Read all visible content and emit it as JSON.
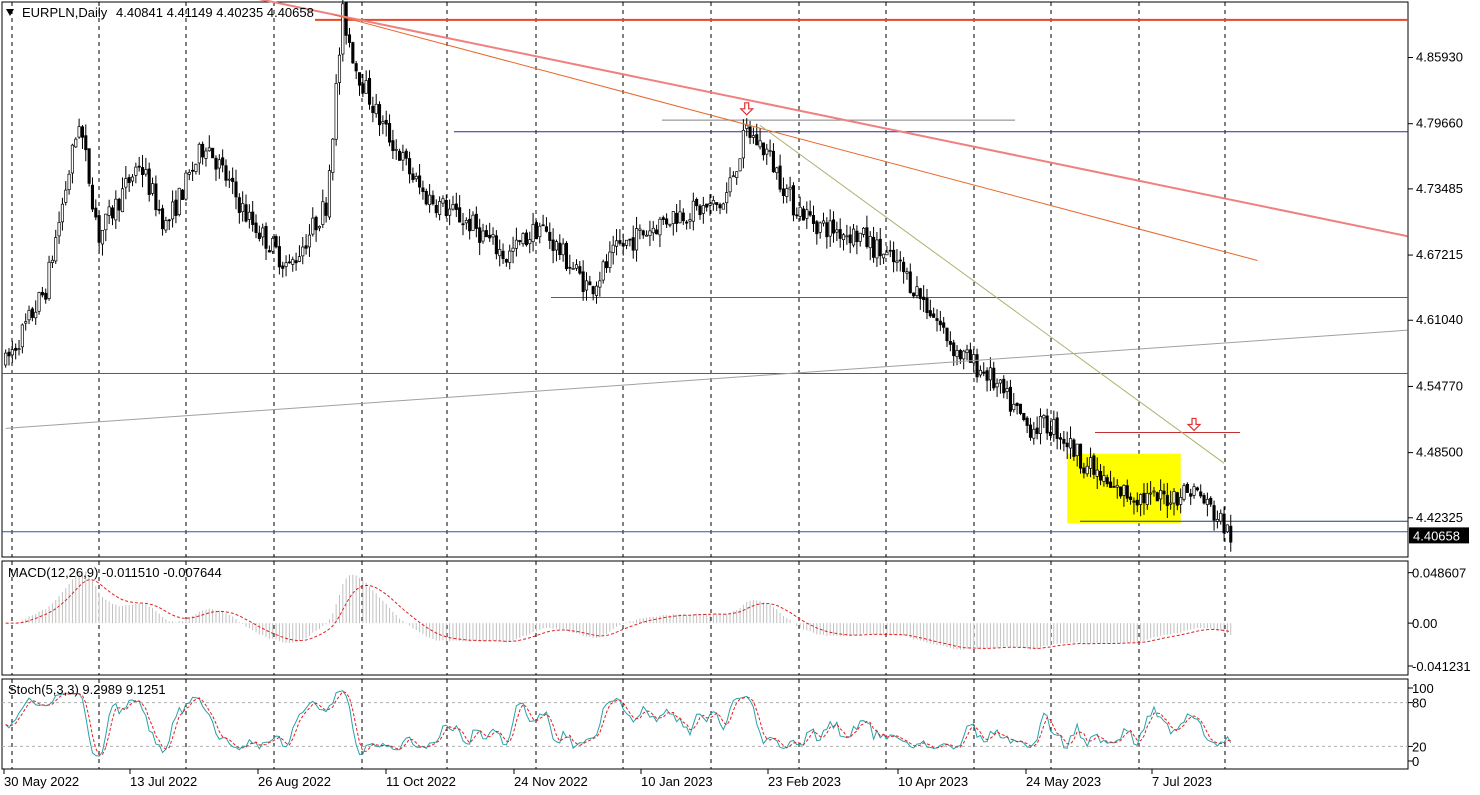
{
  "header": {
    "menu_icon": "triangle-down-icon",
    "symbol": "EURPLN,Daily",
    "ohlc": "4.40841 4.41149 4.40235 4.40658"
  },
  "chart_data": {
    "type": "candlestick",
    "symbol": "EURPLN",
    "timeframe": "Daily",
    "last_price": "4.40658",
    "price_range": [
      4.388,
      4.91
    ],
    "price_ticks": [
      "4.85930",
      "4.79660",
      "4.73485",
      "4.67215",
      "4.61040",
      "4.54770",
      "4.48500",
      "4.42325"
    ],
    "date_labels": [
      "30 May 2022",
      "13 Jul 2022",
      "26 Aug 2022",
      "11 Oct 2022",
      "24 Nov 2022",
      "10 Jan 2023",
      "23 Feb 2023",
      "10 Apr 2023",
      "24 May 2023",
      "7 Jul 2023"
    ],
    "grid": "vertical dashed",
    "price_path": [
      [
        0,
        4.57
      ],
      [
        12,
        4.64
      ],
      [
        22,
        4.8
      ],
      [
        28,
        4.69
      ],
      [
        40,
        4.76
      ],
      [
        48,
        4.7
      ],
      [
        60,
        4.78
      ],
      [
        72,
        4.71
      ],
      [
        85,
        4.66
      ],
      [
        96,
        4.72
      ],
      [
        101,
        4.9
      ],
      [
        105,
        4.85
      ],
      [
        112,
        4.8
      ],
      [
        125,
        4.73
      ],
      [
        140,
        4.7
      ],
      [
        150,
        4.67
      ],
      [
        160,
        4.7
      ],
      [
        170,
        4.66
      ],
      [
        175,
        4.64
      ],
      [
        184,
        4.68
      ],
      [
        200,
        4.71
      ],
      [
        215,
        4.72
      ],
      [
        222,
        4.79
      ],
      [
        228,
        4.77
      ],
      [
        236,
        4.72
      ],
      [
        244,
        4.7
      ],
      [
        256,
        4.69
      ],
      [
        268,
        4.66
      ],
      [
        277,
        4.62
      ],
      [
        285,
        4.58
      ],
      [
        294,
        4.56
      ],
      [
        306,
        4.51
      ],
      [
        314,
        4.51
      ],
      [
        322,
        4.48
      ],
      [
        331,
        4.45
      ],
      [
        344,
        4.44
      ],
      [
        356,
        4.45
      ],
      [
        364,
        4.42
      ],
      [
        367,
        4.406
      ]
    ],
    "yellow_zone": {
      "x": [
        318,
        352
      ],
      "y": [
        4.418,
        4.484
      ]
    },
    "horizontal_lines": [
      {
        "price": 4.895,
        "color": "#e8472a"
      },
      {
        "price": 4.789,
        "color": "#2a2aa0"
      },
      {
        "price": 4.8,
        "color": "#808080"
      },
      {
        "price": 4.632,
        "color": "#c43030"
      },
      {
        "price": 4.56,
        "color": "#c43030"
      },
      {
        "price": 4.504,
        "color": "#c43030"
      },
      {
        "price": 4.42,
        "color": "#1a3a8a"
      },
      {
        "price": 4.41,
        "color": "#2a5aa0"
      }
    ],
    "trendlines": [
      {
        "from": [
          60,
          4.925
        ],
        "to": [
          420,
          4.69
        ],
        "color": "#f08080"
      },
      {
        "from": [
          98,
          4.9
        ],
        "to": [
          375,
          4.667
        ],
        "color": "#e8672a"
      },
      {
        "from": [
          0,
          4.508
        ],
        "to": [
          420,
          4.601
        ],
        "color": "#a0a0a0"
      },
      {
        "from": [
          226,
          4.795
        ],
        "to": [
          365,
          4.475
        ],
        "color": "#b0b070"
      }
    ],
    "markers": [
      {
        "type": "down-arrow",
        "x": 222,
        "price": 4.805
      },
      {
        "type": "down-arrow",
        "x": 356,
        "price": 4.506
      }
    ],
    "indicators": {
      "macd": {
        "label": "MACD(12,26,9) -0.011510 -0.007644",
        "ticks": [
          "0.048607",
          "0.00",
          "-0.041231"
        ],
        "range": [
          -0.047,
          0.055
        ]
      },
      "stochastic": {
        "label": "Stoch(5,3,3) 9.2989 9.1251",
        "ticks": [
          "100",
          "80",
          "20",
          "0"
        ],
        "range": [
          0,
          100
        ],
        "levels": [
          80,
          20
        ]
      }
    }
  }
}
